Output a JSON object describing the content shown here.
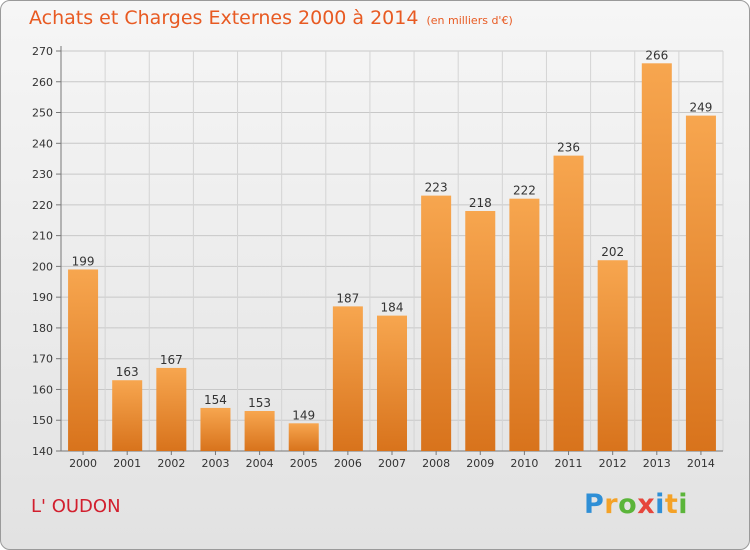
{
  "header": {
    "title": "Achats et Charges Externes 2000 à 2014",
    "unit": "(en milliers d'€)"
  },
  "footer": {
    "place": "L' OUDON",
    "logo": "Proxiti"
  },
  "colors": {
    "title": "#e85a22",
    "place": "#d21f2e",
    "bar_light": "#f7a64f",
    "bar_dark": "#d8731c"
  },
  "chart_data": {
    "type": "bar",
    "categories": [
      "2000",
      "2001",
      "2002",
      "2003",
      "2004",
      "2005",
      "2006",
      "2007",
      "2008",
      "2009",
      "2010",
      "2011",
      "2012",
      "2013",
      "2014"
    ],
    "values": [
      199,
      163,
      167,
      154,
      153,
      149,
      187,
      184,
      223,
      218,
      222,
      236,
      202,
      266,
      249
    ],
    "title": "Achats et Charges Externes 2000 à 2014",
    "subtitle": "(en milliers d'€)",
    "xlabel": "",
    "ylabel": "",
    "ylim": [
      140,
      270
    ],
    "yticks": [
      140,
      150,
      160,
      170,
      180,
      190,
      200,
      210,
      220,
      230,
      240,
      250,
      260,
      270
    ],
    "grid": true,
    "data_labels": true
  }
}
